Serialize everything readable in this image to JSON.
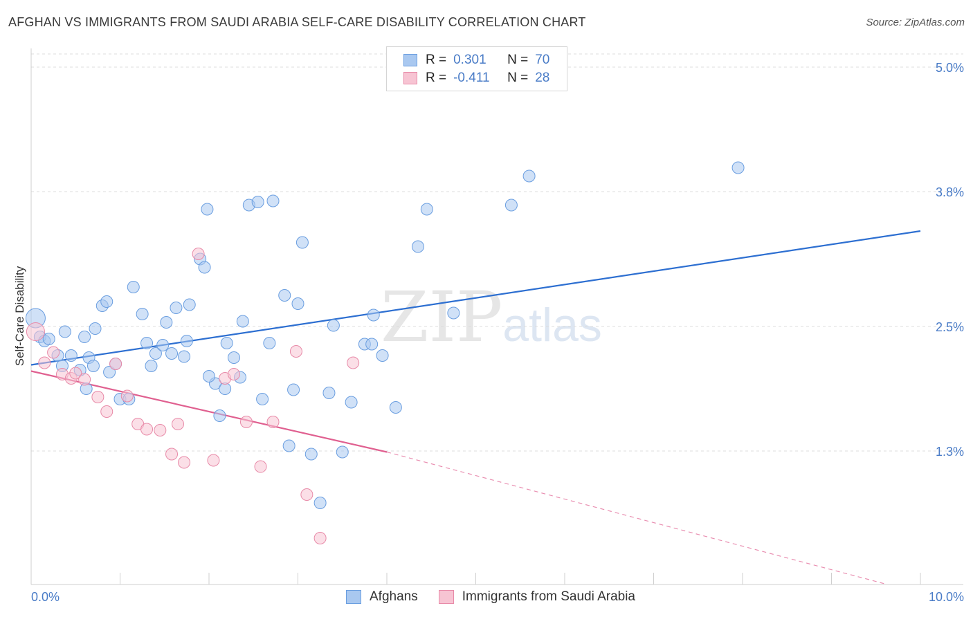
{
  "title": "AFGHAN VS IMMIGRANTS FROM SAUDI ARABIA SELF-CARE DISABILITY CORRELATION CHART",
  "source": "Source: ZipAtlas.com",
  "watermark": {
    "zip": "ZIP",
    "atlas": "atlas"
  },
  "legend": {
    "rows": [
      {
        "r_label": "R =",
        "r_value": "0.301",
        "n_label": "N =",
        "n_value": "70",
        "color": "#a9c8f0",
        "border": "#6a9ee0"
      },
      {
        "r_label": "R =",
        "r_value": "-0.411",
        "n_label": "N =",
        "n_value": "28",
        "color": "#f7c4d3",
        "border": "#e88aa8"
      }
    ]
  },
  "bottom_legend": [
    {
      "label": "Afghans",
      "color": "#a9c8f0",
      "border": "#6a9ee0"
    },
    {
      "label": "Immigrants from Saudi Arabia",
      "color": "#f7c4d3",
      "border": "#e88aa8"
    }
  ],
  "chart_data": {
    "type": "scatter",
    "title": "AFGHAN VS IMMIGRANTS FROM SAUDI ARABIA SELF-CARE DISABILITY CORRELATION CHART",
    "xlabel": "",
    "ylabel": "Self-Care Disability",
    "xlim": [
      0,
      10
    ],
    "ylim": [
      0,
      5.2
    ],
    "x_tick_labels": [
      "0.0%",
      "10.0%"
    ],
    "y_ticks": [
      1.3,
      2.5,
      3.8,
      5.0
    ],
    "y_tick_labels": [
      "1.3%",
      "2.5%",
      "3.8%",
      "5.0%"
    ],
    "series": [
      {
        "name": "Afghans",
        "color": "#a9c8f0",
        "stroke": "#6a9ee0",
        "trend": {
          "x": [
            0,
            10
          ],
          "y": [
            2.13,
            3.42
          ],
          "color": "#2d6fd1"
        },
        "points": [
          [
            0.05,
            2.58
          ],
          [
            0.1,
            2.4
          ],
          [
            0.15,
            2.36
          ],
          [
            0.2,
            2.38
          ],
          [
            0.3,
            2.22
          ],
          [
            0.35,
            2.12
          ],
          [
            0.38,
            2.45
          ],
          [
            0.45,
            2.22
          ],
          [
            0.55,
            2.08
          ],
          [
            0.6,
            2.4
          ],
          [
            0.65,
            2.2
          ],
          [
            0.62,
            1.9
          ],
          [
            0.7,
            2.12
          ],
          [
            0.72,
            2.48
          ],
          [
            0.8,
            2.7
          ],
          [
            0.85,
            2.74
          ],
          [
            0.88,
            2.06
          ],
          [
            0.95,
            2.14
          ],
          [
            1.0,
            1.8
          ],
          [
            1.1,
            1.8
          ],
          [
            1.15,
            2.88
          ],
          [
            1.25,
            2.62
          ],
          [
            1.3,
            2.34
          ],
          [
            1.35,
            2.12
          ],
          [
            1.4,
            2.24
          ],
          [
            1.48,
            2.32
          ],
          [
            1.52,
            2.54
          ],
          [
            1.58,
            2.24
          ],
          [
            1.63,
            2.68
          ],
          [
            1.72,
            2.21
          ],
          [
            1.75,
            2.36
          ],
          [
            1.78,
            2.71
          ],
          [
            1.9,
            3.15
          ],
          [
            1.95,
            3.07
          ],
          [
            1.98,
            3.63
          ],
          [
            2.07,
            1.95
          ],
          [
            2.12,
            1.64
          ],
          [
            2.18,
            1.9
          ],
          [
            2.2,
            2.34
          ],
          [
            2.28,
            2.2
          ],
          [
            2.35,
            2.01
          ],
          [
            2.38,
            2.55
          ],
          [
            2.45,
            3.67
          ],
          [
            2.55,
            3.7
          ],
          [
            2.6,
            1.8
          ],
          [
            2.68,
            2.34
          ],
          [
            2.72,
            3.71
          ],
          [
            2.85,
            2.8
          ],
          [
            2.9,
            1.35
          ],
          [
            2.95,
            1.89
          ],
          [
            3.0,
            2.72
          ],
          [
            3.05,
            3.31
          ],
          [
            3.15,
            1.27
          ],
          [
            3.25,
            0.8
          ],
          [
            3.35,
            1.86
          ],
          [
            3.4,
            2.51
          ],
          [
            3.5,
            1.29
          ],
          [
            3.6,
            1.77
          ],
          [
            3.75,
            2.33
          ],
          [
            3.83,
            2.33
          ],
          [
            3.85,
            2.61
          ],
          [
            3.95,
            2.22
          ],
          [
            4.1,
            1.72
          ],
          [
            4.35,
            3.27
          ],
          [
            4.45,
            3.63
          ],
          [
            4.75,
            2.63
          ],
          [
            5.4,
            3.67
          ],
          [
            5.6,
            3.95
          ],
          [
            7.95,
            4.03
          ],
          [
            2.0,
            2.02
          ]
        ]
      },
      {
        "name": "Immigrants from Saudi Arabia",
        "color": "#f7c4d3",
        "stroke": "#e88aa8",
        "trend": {
          "x": [
            0,
            4.0
          ],
          "y": [
            2.07,
            1.29
          ],
          "color": "#e06090",
          "dash_to": {
            "x": 9.6,
            "y": 0.02
          }
        },
        "points": [
          [
            0.05,
            2.45
          ],
          [
            0.15,
            2.15
          ],
          [
            0.25,
            2.25
          ],
          [
            0.35,
            2.04
          ],
          [
            0.45,
            2.0
          ],
          [
            0.5,
            2.05
          ],
          [
            0.6,
            1.99
          ],
          [
            0.75,
            1.82
          ],
          [
            0.85,
            1.68
          ],
          [
            0.95,
            2.14
          ],
          [
            1.08,
            1.83
          ],
          [
            1.2,
            1.56
          ],
          [
            1.3,
            1.51
          ],
          [
            1.45,
            1.5
          ],
          [
            1.58,
            1.27
          ],
          [
            1.65,
            1.56
          ],
          [
            1.72,
            1.19
          ],
          [
            1.88,
            3.2
          ],
          [
            2.05,
            1.21
          ],
          [
            2.18,
            2.0
          ],
          [
            2.28,
            2.04
          ],
          [
            2.42,
            1.58
          ],
          [
            2.58,
            1.15
          ],
          [
            2.72,
            1.58
          ],
          [
            2.98,
            2.26
          ],
          [
            3.1,
            0.88
          ],
          [
            3.25,
            0.46
          ],
          [
            3.62,
            2.15
          ]
        ]
      }
    ]
  }
}
